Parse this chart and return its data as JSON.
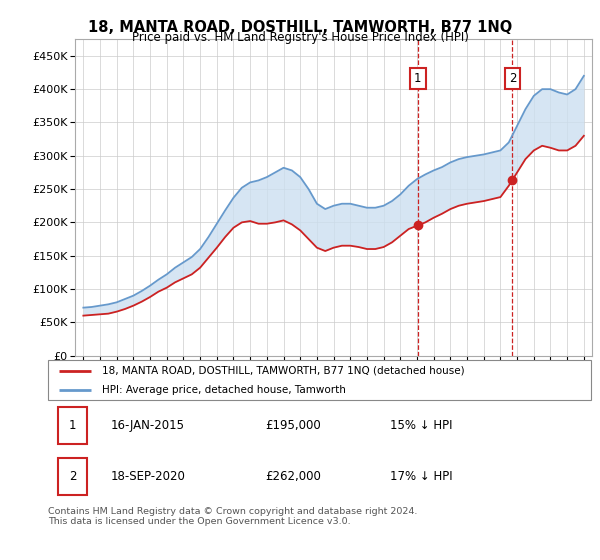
{
  "title": "18, MANTA ROAD, DOSTHILL, TAMWORTH, B77 1NQ",
  "subtitle": "Price paid vs. HM Land Registry's House Price Index (HPI)",
  "hpi_color": "#6699cc",
  "price_color": "#cc2222",
  "shading_color": "#ccdff0",
  "sale1_date_label": "16-JAN-2015",
  "sale1_price": 195000,
  "sale1_pct": "15% ↓ HPI",
  "sale2_date_label": "18-SEP-2020",
  "sale2_price": 262000,
  "sale2_pct": "17% ↓ HPI",
  "sale1_x": 2015.04,
  "sale2_x": 2020.72,
  "legend_label1": "18, MANTA ROAD, DOSTHILL, TAMWORTH, B77 1NQ (detached house)",
  "legend_label2": "HPI: Average price, detached house, Tamworth",
  "footer": "Contains HM Land Registry data © Crown copyright and database right 2024.\nThis data is licensed under the Open Government Licence v3.0.",
  "ylim": [
    0,
    475000
  ],
  "yticks": [
    0,
    50000,
    100000,
    150000,
    200000,
    250000,
    300000,
    350000,
    400000,
    450000
  ],
  "ytick_labels": [
    "£0",
    "£50K",
    "£100K",
    "£150K",
    "£200K",
    "£250K",
    "£300K",
    "£350K",
    "£400K",
    "£450K"
  ],
  "xlim": [
    1994.5,
    2025.5
  ],
  "xticks": [
    1995,
    1996,
    1997,
    1998,
    1999,
    2000,
    2001,
    2002,
    2003,
    2004,
    2005,
    2006,
    2007,
    2008,
    2009,
    2010,
    2011,
    2012,
    2013,
    2014,
    2015,
    2016,
    2017,
    2018,
    2019,
    2020,
    2021,
    2022,
    2023,
    2024,
    2025
  ],
  "hpi_data_x": [
    1995,
    1995.5,
    1996,
    1996.5,
    1997,
    1997.5,
    1998,
    1998.5,
    1999,
    1999.5,
    2000,
    2000.5,
    2001,
    2001.5,
    2002,
    2002.5,
    2003,
    2003.5,
    2004,
    2004.5,
    2005,
    2005.5,
    2006,
    2006.5,
    2007,
    2007.5,
    2008,
    2008.5,
    2009,
    2009.5,
    2010,
    2010.5,
    2011,
    2011.5,
    2012,
    2012.5,
    2013,
    2013.5,
    2014,
    2014.5,
    2015,
    2015.5,
    2016,
    2016.5,
    2017,
    2017.5,
    2018,
    2018.5,
    2019,
    2019.5,
    2020,
    2020.5,
    2021,
    2021.5,
    2022,
    2022.5,
    2023,
    2023.5,
    2024,
    2024.5,
    2025
  ],
  "hpi_data_y": [
    72000,
    73000,
    75000,
    77000,
    80000,
    85000,
    90000,
    97000,
    105000,
    114000,
    122000,
    132000,
    140000,
    148000,
    160000,
    178000,
    198000,
    218000,
    237000,
    252000,
    260000,
    263000,
    268000,
    275000,
    282000,
    278000,
    268000,
    250000,
    228000,
    220000,
    225000,
    228000,
    228000,
    225000,
    222000,
    222000,
    225000,
    232000,
    242000,
    255000,
    265000,
    272000,
    278000,
    283000,
    290000,
    295000,
    298000,
    300000,
    302000,
    305000,
    308000,
    320000,
    345000,
    370000,
    390000,
    400000,
    400000,
    395000,
    392000,
    400000,
    420000
  ],
  "prop_data_x": [
    1995,
    1995.5,
    1996,
    1996.5,
    1997,
    1997.5,
    1998,
    1998.5,
    1999,
    1999.5,
    2000,
    2000.5,
    2001,
    2001.5,
    2002,
    2002.5,
    2003,
    2003.5,
    2004,
    2004.5,
    2005,
    2005.5,
    2006,
    2006.5,
    2007,
    2007.5,
    2008,
    2008.5,
    2009,
    2009.5,
    2010,
    2010.5,
    2011,
    2011.5,
    2012,
    2012.5,
    2013,
    2013.5,
    2014,
    2014.5,
    2015,
    2015.5,
    2016,
    2016.5,
    2017,
    2017.5,
    2018,
    2018.5,
    2019,
    2019.5,
    2020,
    2020.5,
    2021,
    2021.5,
    2022,
    2022.5,
    2023,
    2023.5,
    2024,
    2024.5,
    2025
  ],
  "prop_data_y": [
    60000,
    61000,
    62000,
    63000,
    66000,
    70000,
    75000,
    81000,
    88000,
    96000,
    102000,
    110000,
    116000,
    122000,
    132000,
    147000,
    162000,
    178000,
    192000,
    200000,
    202000,
    198000,
    198000,
    200000,
    203000,
    197000,
    188000,
    175000,
    162000,
    157000,
    162000,
    165000,
    165000,
    163000,
    160000,
    160000,
    163000,
    170000,
    180000,
    190000,
    195000,
    200000,
    207000,
    213000,
    220000,
    225000,
    228000,
    230000,
    232000,
    235000,
    238000,
    255000,
    275000,
    295000,
    308000,
    315000,
    312000,
    308000,
    308000,
    315000,
    330000
  ]
}
